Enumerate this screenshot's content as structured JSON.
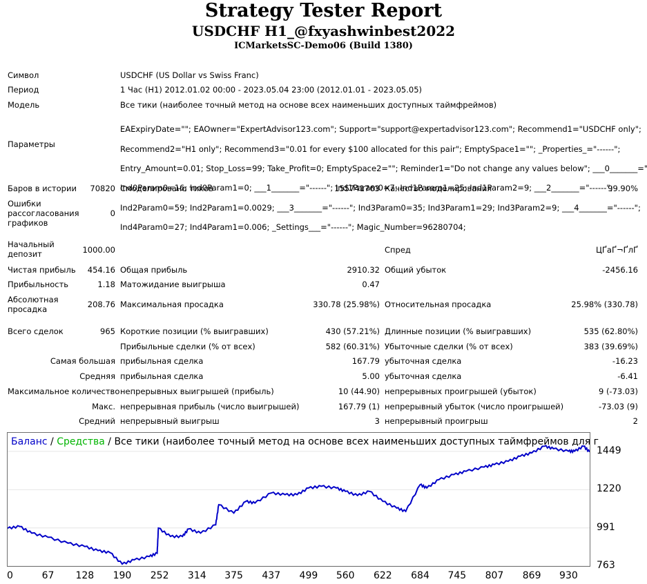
{
  "header": {
    "title": "Strategy Tester Report",
    "subtitle": "USDCHF H1_@fxyashwinbest2022",
    "server": "ICMarketsSC-Demo06 (Build 1380)"
  },
  "info": {
    "symbol_label": "Символ",
    "symbol_value": "USDCHF (US Dollar vs Swiss Franc)",
    "period_label": "Период",
    "period_value": "1 Час (H1) 2012.01.02 00:00 - 2023.05.04 23:00 (2012.01.01 - 2023.05.05)",
    "model_label": "Модель",
    "model_value": "Все тики (наиболее точный метод на основе всех наименьших доступных таймфреймов)",
    "params_label": "Параметры",
    "params_lines": [
      "EAExpiryDate=\"\"; EAOwner=\"ExpertAdvisor123.com\"; Support=\"support@expertadvisor123.com\"; Recommend1=\"USDCHF only\";",
      "Recommend2=\"H1 only\"; Recommend3=\"0.01 for every $100 allocated for this pair\"; EmptySpace1=\"\"; _Properties_=\"------\";",
      "Entry_Amount=0.01; Stop_Loss=99; Take_Profit=0; EmptySpace2=\"\"; Reminder1=\"Do not change any values below\"; ___0_______=\"------\";",
      "Ind0Param0=16; Ind0Param1=0; ___1_______=\"------\"; Ind1Param0=7; Ind1Param1=25; Ind1Param2=9; ___2_______=\"------\";",
      "Ind2Param0=59; Ind2Param1=0.0029; ___3_______=\"------\"; Ind3Param0=35; Ind3Param1=29; Ind3Param2=9; ___4_______=\"------\";",
      "Ind4Param0=27; Ind4Param1=0.006; _Settings___=\"------\"; Magic_Number=96280704;"
    ]
  },
  "stats": {
    "bars_label": "Баров в истории",
    "bars_value": "70820",
    "ticks_label": "Смоделировано тиков",
    "ticks_value": "155741763",
    "quality_label": "Качество моделирования",
    "quality_value": "99.90%",
    "errors_label_1": "Ошибки",
    "errors_label_2": "рассогласования",
    "errors_label_3": "графиков",
    "errors_value": "0",
    "deposit_label_1": "Начальный",
    "deposit_label_2": "депозит",
    "deposit_value": "1000.00",
    "spread_label": "Спред",
    "spread_value": "ЦҐаҐ¬ҐлҐ",
    "net_label": "Чистая прибыль",
    "net_value": "454.16",
    "gross_profit_label": "Общая прибыль",
    "gross_profit_value": "2910.32",
    "gross_loss_label": "Общий убыток",
    "gross_loss_value": "-2456.16",
    "pf_label": "Прибыльность",
    "pf_value": "1.18",
    "payoff_label": "Матожидание выигрыша",
    "payoff_value": "0.47",
    "abs_dd_label_1": "Абсолютная",
    "abs_dd_label_2": "просадка",
    "abs_dd_value": "208.76",
    "max_dd_label": "Максимальная просадка",
    "max_dd_value": "330.78 (25.98%)",
    "rel_dd_label": "Относительная просадка",
    "rel_dd_value": "25.98% (330.78)",
    "total_label": "Всего сделок",
    "total_value": "965",
    "short_label": "Короткие позиции (% выигравших)",
    "short_value": "430 (57.21%)",
    "long_label": "Длинные позиции (% выигравших)",
    "long_value": "535 (62.80%)",
    "profit_trades_label": "Прибыльные сделки (% от всех)",
    "profit_trades_value": "582 (60.31%)",
    "loss_trades_label": "Убыточные сделки (% от всех)",
    "loss_trades_value": "383 (39.69%)",
    "largest_label": "Самая большая",
    "largest_profit_label": "прибыльная сделка",
    "largest_profit_value": "167.79",
    "largest_loss_label": "убыточная сделка",
    "largest_loss_value": "-16.23",
    "avg_label": "Средняя",
    "avg_profit_label": "прибыльная сделка",
    "avg_profit_value": "5.00",
    "avg_loss_label": "убыточная сделка",
    "avg_loss_value": "-6.41",
    "maxcount_label": "Максимальное количество",
    "maxcount_wins_label": "непрерывных выигрышей (прибыль)",
    "maxcount_wins_value": "10 (44.90)",
    "maxcount_losses_label": "непрерывных проигрышей (убыток)",
    "maxcount_losses_value": "9 (-73.03)",
    "max_label": "Макс.",
    "max_profit_label": "непрерывная прибыль (число выигрышей)",
    "max_profit_value": "167.79 (1)",
    "max_loss_label": "непрерывный убыток (число проигрышей)",
    "max_loss_value": "-73.03 (9)",
    "avgcons_label": "Средний",
    "avgcons_wins_label": "непрерывный выигрыш",
    "avgcons_wins_value": "3",
    "avgcons_losses_label": "непрерывный проигрыш",
    "avgcons_losses_value": "2"
  },
  "chart_legend": {
    "balance": "Баланс",
    "sep1": " / ",
    "equity": "Средства",
    "sep2": " / ",
    "rest": "Все тики (наиболее точный метод на основе всех наименьших доступных таймфреймов для г"
  },
  "chart_data": {
    "type": "line",
    "series": [
      {
        "name": "Баланс",
        "color": "#0000c8",
        "x": [
          0,
          20,
          40,
          67,
          100,
          128,
          150,
          170,
          190,
          210,
          235,
          248,
          250,
          270,
          290,
          300,
          320,
          345,
          350,
          375,
          395,
          410,
          437,
          460,
          480,
          499,
          520,
          545,
          560,
          580,
          600,
          622,
          645,
          660,
          684,
          695,
          715,
          740,
          760,
          790,
          807,
          830,
          850,
          869,
          890,
          905,
          930,
          940,
          955,
          965
        ],
        "values": [
          989,
          1000,
          960,
          935,
          900,
          880,
          855,
          843,
          775,
          800,
          820,
          840,
          990,
          940,
          940,
          985,
          960,
          1010,
          1130,
          1080,
          1150,
          1140,
          1200,
          1190,
          1190,
          1230,
          1240,
          1230,
          1210,
          1185,
          1210,
          1150,
          1110,
          1090,
          1250,
          1230,
          1280,
          1310,
          1330,
          1355,
          1370,
          1390,
          1420,
          1440,
          1480,
          1465,
          1450,
          1450,
          1480,
          1445
        ]
      }
    ],
    "x_ticks": [
      "0",
      "67",
      "128",
      "190",
      "252",
      "314",
      "375",
      "437",
      "499",
      "560",
      "622",
      "684",
      "745",
      "807",
      "869",
      "930"
    ],
    "y_ticks": [
      "1449",
      "1220",
      "991",
      "763"
    ],
    "xlim": [
      0,
      965
    ],
    "ylim": [
      763,
      1560
    ]
  }
}
